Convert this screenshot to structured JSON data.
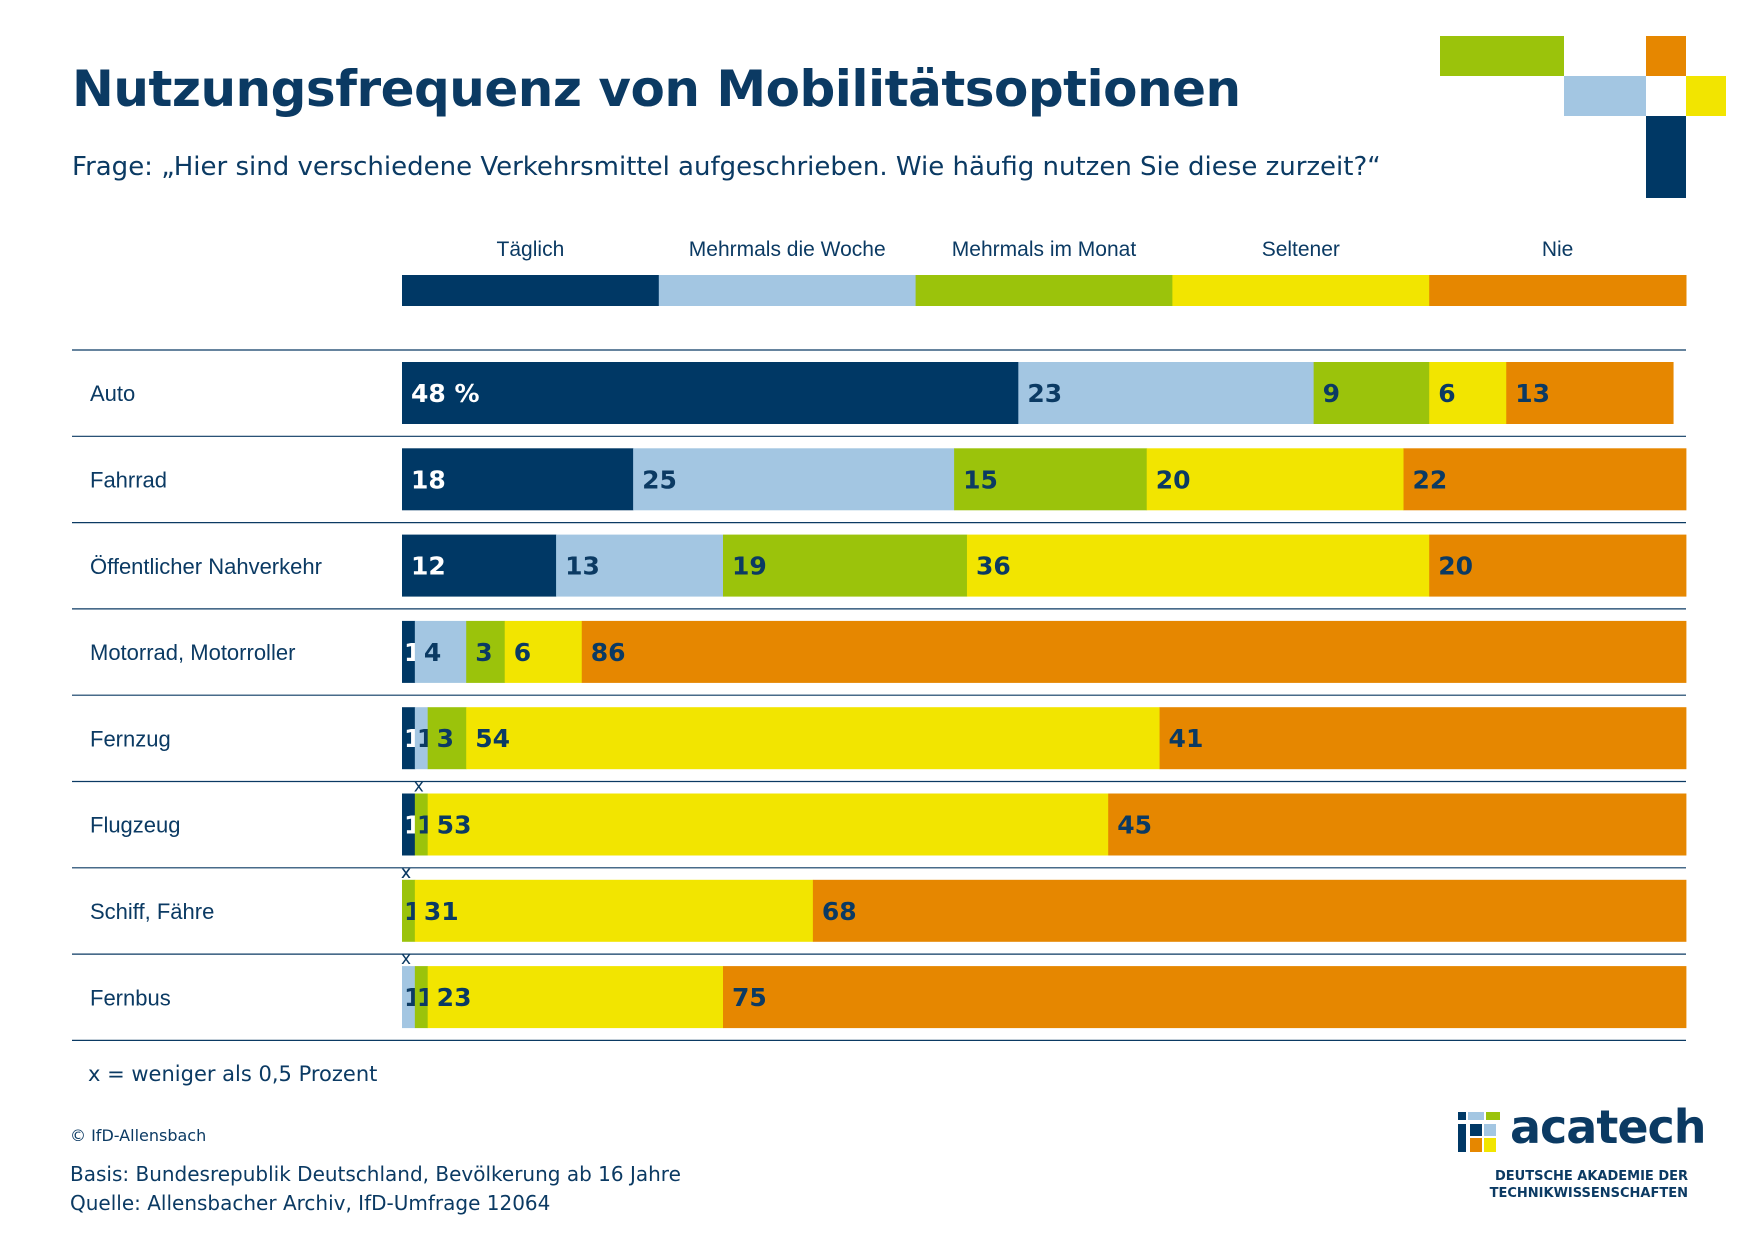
{
  "header": {
    "title": "Nutzungsfrequenz von Mobilitätsoptionen",
    "question": "Frage: „Hier sind verschiedene Verkehrsmittel aufgeschrieben. Wie häufig nutzen Sie diese zurzeit?“"
  },
  "colors": {
    "taeglich": "#003865",
    "mehrmals_woche": "#a3c6e2",
    "mehrmals_monat": "#9bc30b",
    "seltener": "#f2e500",
    "nie": "#e68700",
    "text_dark": "#0b3a63",
    "rule": "#0b3a63"
  },
  "chart_data": {
    "type": "bar",
    "orientation": "horizontal",
    "stacked": true,
    "unit": "%",
    "legend_position": "top",
    "categories": [
      "Auto",
      "Fahrrad",
      "Öffentlicher Nahverkehr",
      "Motorrad, Motorroller",
      "Fernzug",
      "Flugzeug",
      "Schiff, Fähre",
      "Fernbus"
    ],
    "series": [
      {
        "name": "Täglich",
        "values": [
          48,
          18,
          12,
          1,
          1,
          1,
          0,
          0
        ],
        "labels": [
          "48 %",
          "18",
          "12",
          "1",
          "1",
          "1",
          "x",
          "x"
        ]
      },
      {
        "name": "Mehrmals die Woche",
        "values": [
          23,
          25,
          13,
          4,
          1,
          0,
          0,
          1
        ],
        "labels": [
          "23",
          "25",
          "13",
          "4",
          "1",
          "x",
          "x",
          "1"
        ]
      },
      {
        "name": "Mehrmals im Monat",
        "values": [
          9,
          15,
          19,
          3,
          3,
          1,
          1,
          1
        ],
        "labels": [
          "9",
          "15",
          "19",
          "3",
          "3",
          "1",
          "1",
          "1"
        ]
      },
      {
        "name": "Seltener",
        "values": [
          6,
          20,
          36,
          6,
          54,
          53,
          31,
          23
        ],
        "labels": [
          "6",
          "20",
          "36",
          "6",
          "54",
          "53",
          "31",
          "23"
        ]
      },
      {
        "name": "Nie",
        "values": [
          13,
          22,
          20,
          86,
          41,
          45,
          68,
          75
        ],
        "labels": [
          "13",
          "22",
          "20",
          "86",
          "41",
          "45",
          "68",
          "75"
        ]
      }
    ]
  },
  "footnote": "x = weniger als 0,5 Prozent",
  "source": {
    "copyright": "© IfD-Allensbach",
    "basis": "Basis: Bundesrepublik Deutschland, Bevölkerung ab 16 Jahre",
    "quelle": "Quelle: Allensbacher Archiv, IfD-Umfrage 12064"
  },
  "logo": {
    "name": "acatech",
    "subtitle_line1": "DEUTSCHE AKADEMIE DER",
    "subtitle_line2": "TECHNIKWISSENSCHAFTEN"
  }
}
